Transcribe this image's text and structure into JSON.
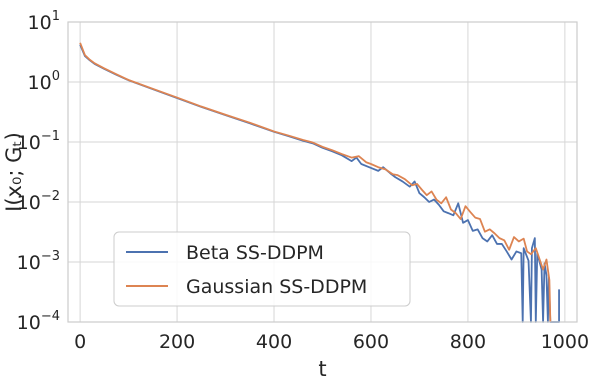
{
  "chart_data": {
    "type": "line",
    "xlabel": "t",
    "ylabel": "I(x₀; Gₜ)",
    "xlim": [
      -25,
      1025
    ],
    "ylim": [
      0.0001,
      10
    ],
    "yscale": "log",
    "grid": true,
    "legend_placement": "lower-left",
    "x_ticks": [
      0,
      200,
      400,
      600,
      800,
      1000
    ],
    "x_tick_labels": [
      "0",
      "200",
      "400",
      "600",
      "800",
      "1000"
    ],
    "y_ticks": [
      0.0001,
      0.001,
      0.01,
      0.1,
      1,
      10
    ],
    "y_tick_labels": [
      {
        "base": "10",
        "exp": "−4"
      },
      {
        "base": "10",
        "exp": "−3"
      },
      {
        "base": "10",
        "exp": "−2"
      },
      {
        "base": "10",
        "exp": "−1"
      },
      {
        "base": "10",
        "exp": "0"
      },
      {
        "base": "10",
        "exp": "1"
      }
    ],
    "series": [
      {
        "name": "Beta SS-DDPM",
        "color": "#4c72b0",
        "points": [
          [
            0,
            4.2
          ],
          [
            10,
            2.7
          ],
          [
            20,
            2.3
          ],
          [
            30,
            2.0
          ],
          [
            50,
            1.65
          ],
          [
            75,
            1.32
          ],
          [
            100,
            1.07
          ],
          [
            150,
            0.76
          ],
          [
            200,
            0.54
          ],
          [
            250,
            0.385
          ],
          [
            300,
            0.28
          ],
          [
            350,
            0.205
          ],
          [
            400,
            0.148
          ],
          [
            430,
            0.125
          ],
          [
            460,
            0.105
          ],
          [
            480,
            0.095
          ],
          [
            500,
            0.08
          ],
          [
            520,
            0.07
          ],
          [
            540,
            0.06
          ],
          [
            560,
            0.048
          ],
          [
            570,
            0.055
          ],
          [
            580,
            0.043
          ],
          [
            600,
            0.037
          ],
          [
            615,
            0.033
          ],
          [
            625,
            0.038
          ],
          [
            640,
            0.03
          ],
          [
            650,
            0.026
          ],
          [
            665,
            0.022
          ],
          [
            680,
            0.018
          ],
          [
            690,
            0.022
          ],
          [
            700,
            0.014
          ],
          [
            710,
            0.012
          ],
          [
            720,
            0.01
          ],
          [
            730,
            0.011
          ],
          [
            740,
            0.009
          ],
          [
            750,
            0.007
          ],
          [
            760,
            0.0065
          ],
          [
            770,
            0.006
          ],
          [
            780,
            0.0095
          ],
          [
            790,
            0.0045
          ],
          [
            800,
            0.005
          ],
          [
            810,
            0.0033
          ],
          [
            820,
            0.0035
          ],
          [
            830,
            0.0025
          ],
          [
            840,
            0.0022
          ],
          [
            850,
            0.0028
          ],
          [
            860,
            0.002
          ],
          [
            870,
            0.002
          ],
          [
            880,
            0.0015
          ],
          [
            890,
            0.0011
          ],
          [
            900,
            0.0015
          ],
          [
            910,
            0.0014
          ],
          [
            913,
            0.0001
          ],
          [
            915,
            0.0017
          ],
          [
            925,
            0.00105
          ],
          [
            930,
            0.0001
          ],
          [
            932,
            0.0017
          ],
          [
            938,
            0.0025
          ],
          [
            940,
            0.0001
          ],
          [
            943,
            0.0014
          ],
          [
            952,
            0.00075
          ],
          [
            955,
            0.0001
          ],
          [
            958,
            0.00095
          ],
          [
            962,
            0.0006
          ],
          [
            965,
            0.0001
          ],
          [
            967,
            0.00055
          ],
          [
            970,
            0.0001
          ],
          [
            988,
            0.0001
          ],
          [
            988,
            0.00035
          ]
        ]
      },
      {
        "name": "Gaussian SS-DDPM",
        "color": "#dd8452",
        "points": [
          [
            0,
            4.5
          ],
          [
            10,
            2.8
          ],
          [
            20,
            2.35
          ],
          [
            30,
            2.05
          ],
          [
            50,
            1.68
          ],
          [
            75,
            1.34
          ],
          [
            100,
            1.08
          ],
          [
            150,
            0.77
          ],
          [
            200,
            0.55
          ],
          [
            250,
            0.39
          ],
          [
            300,
            0.285
          ],
          [
            350,
            0.21
          ],
          [
            400,
            0.15
          ],
          [
            430,
            0.128
          ],
          [
            460,
            0.108
          ],
          [
            480,
            0.098
          ],
          [
            500,
            0.083
          ],
          [
            520,
            0.073
          ],
          [
            540,
            0.063
          ],
          [
            560,
            0.055
          ],
          [
            575,
            0.058
          ],
          [
            590,
            0.046
          ],
          [
            600,
            0.043
          ],
          [
            615,
            0.038
          ],
          [
            630,
            0.035
          ],
          [
            645,
            0.029
          ],
          [
            655,
            0.028
          ],
          [
            670,
            0.024
          ],
          [
            685,
            0.019
          ],
          [
            695,
            0.02
          ],
          [
            705,
            0.016
          ],
          [
            715,
            0.013
          ],
          [
            725,
            0.015
          ],
          [
            735,
            0.011
          ],
          [
            745,
            0.0095
          ],
          [
            755,
            0.012
          ],
          [
            765,
            0.0075
          ],
          [
            775,
            0.0065
          ],
          [
            785,
            0.0052
          ],
          [
            795,
            0.0085
          ],
          [
            805,
            0.0068
          ],
          [
            815,
            0.0055
          ],
          [
            825,
            0.0052
          ],
          [
            835,
            0.0032
          ],
          [
            845,
            0.0035
          ],
          [
            855,
            0.003
          ],
          [
            865,
            0.0025
          ],
          [
            875,
            0.0023
          ],
          [
            885,
            0.0016
          ],
          [
            895,
            0.0026
          ],
          [
            905,
            0.0022
          ],
          [
            915,
            0.00245
          ],
          [
            922,
            0.0015
          ],
          [
            930,
            0.00135
          ],
          [
            940,
            0.0017
          ],
          [
            948,
            0.0011
          ],
          [
            955,
            0.00075
          ],
          [
            962,
            0.0011
          ],
          [
            968,
            0.0005
          ],
          [
            970,
            0.0001
          ]
        ]
      }
    ]
  }
}
